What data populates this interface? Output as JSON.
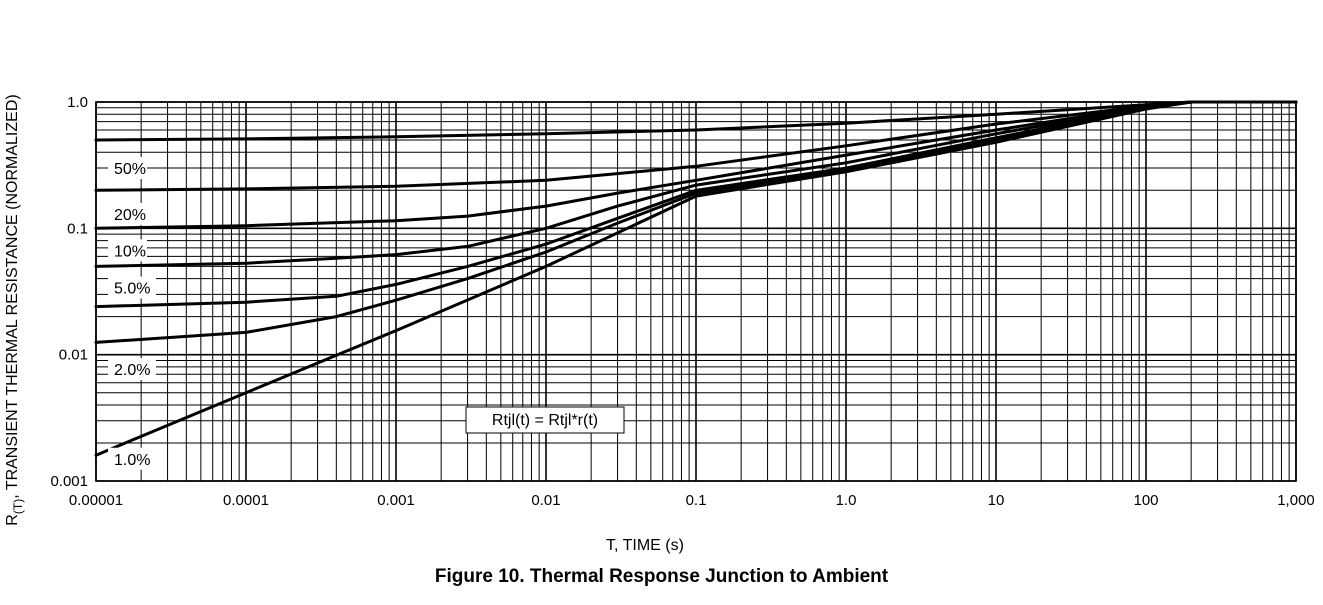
{
  "caption": "Figure 10. Thermal Response Junction to Ambient",
  "chart_data": {
    "type": "line",
    "title": "",
    "xlabel": "T, TIME (s)",
    "ylabel_main": "R",
    "ylabel_sub": "(T)",
    "ylabel_rest": ", TRANSIENT THERMAL RESISTANCE (NORMALIZED)",
    "x_scale": "log",
    "y_scale": "log",
    "xlim": [
      1e-05,
      1000
    ],
    "ylim": [
      0.001,
      1.0
    ],
    "grid": true,
    "x_ticks": [
      {
        "v": 1e-05,
        "label": "0.00001"
      },
      {
        "v": 0.0001,
        "label": "0.0001"
      },
      {
        "v": 0.001,
        "label": "0.001"
      },
      {
        "v": 0.01,
        "label": "0.01"
      },
      {
        "v": 0.1,
        "label": "0.1"
      },
      {
        "v": 1,
        "label": "1.0"
      },
      {
        "v": 10,
        "label": "10"
      },
      {
        "v": 100,
        "label": "100"
      },
      {
        "v": 1000,
        "label": "1,000"
      }
    ],
    "y_ticks": [
      {
        "v": 0.001,
        "label": "0.001"
      },
      {
        "v": 0.01,
        "label": "0.01"
      },
      {
        "v": 0.1,
        "label": "0.1"
      },
      {
        "v": 1.0,
        "label": "1.0"
      }
    ],
    "annotation": "Rtjl(t) = Rtjl*r(t)",
    "series": [
      {
        "name": "50%",
        "x": [
          1e-05,
          0.0001,
          0.001,
          0.01,
          0.1,
          1,
          10,
          100,
          200,
          1000
        ],
        "y": [
          0.5,
          0.51,
          0.53,
          0.56,
          0.6,
          0.68,
          0.8,
          0.95,
          1.0,
          1.0
        ]
      },
      {
        "name": "20%",
        "x": [
          1e-05,
          0.0001,
          0.001,
          0.01,
          0.1,
          1,
          10,
          100,
          200,
          1000
        ],
        "y": [
          0.2,
          0.205,
          0.215,
          0.24,
          0.31,
          0.45,
          0.67,
          0.93,
          1.0,
          1.0
        ]
      },
      {
        "name": "10%",
        "x": [
          1e-05,
          0.0001,
          0.001,
          0.003,
          0.01,
          0.03,
          0.1,
          1,
          10,
          100,
          200,
          1000
        ],
        "y": [
          0.1,
          0.105,
          0.115,
          0.125,
          0.15,
          0.19,
          0.24,
          0.38,
          0.6,
          0.92,
          1.0,
          1.0
        ]
      },
      {
        "name": "5.0%",
        "x": [
          1e-05,
          0.0001,
          0.0004,
          0.001,
          0.003,
          0.01,
          0.03,
          0.1,
          1,
          10,
          100,
          200,
          1000
        ],
        "y": [
          0.05,
          0.053,
          0.058,
          0.062,
          0.072,
          0.1,
          0.15,
          0.22,
          0.33,
          0.56,
          0.91,
          1.0,
          1.0
        ]
      },
      {
        "name": "2.0%",
        "x": [
          1e-05,
          0.0001,
          0.0004,
          0.001,
          0.003,
          0.01,
          0.03,
          0.1,
          1,
          10,
          100,
          200,
          1000
        ],
        "y": [
          0.024,
          0.026,
          0.029,
          0.036,
          0.05,
          0.075,
          0.12,
          0.2,
          0.3,
          0.52,
          0.9,
          1.0,
          1.0
        ]
      },
      {
        "name": "",
        "x": [
          1e-05,
          0.0001,
          0.0004,
          0.001,
          0.003,
          0.01,
          0.03,
          0.1,
          1,
          10,
          100,
          200,
          1000
        ],
        "y": [
          0.0125,
          0.015,
          0.02,
          0.027,
          0.04,
          0.065,
          0.11,
          0.19,
          0.29,
          0.5,
          0.9,
          1.0,
          1.0
        ]
      },
      {
        "name": "1.0%",
        "x": [
          1e-05,
          0.0001,
          0.001,
          0.01,
          0.1,
          1,
          10,
          100,
          200,
          1000
        ],
        "y": [
          0.0016,
          0.005,
          0.0155,
          0.05,
          0.18,
          0.28,
          0.48,
          0.88,
          1.0,
          1.0
        ]
      }
    ],
    "series_labels": [
      "50%",
      "20%",
      "10%",
      "5.0%",
      "2.0%",
      "1.0%"
    ]
  }
}
